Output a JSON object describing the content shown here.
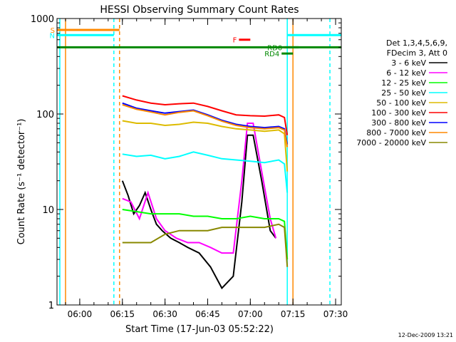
{
  "chart_data": {
    "type": "line",
    "title": "HESSI Observing Summary Count Rates",
    "xlabel": "Start Time (17-Jun-03 05:52:22)",
    "ylabel": "Count Rate (s⁻¹ detector⁻¹)",
    "xscale": "time",
    "yscale": "log",
    "xlim": [
      "05:52",
      "07:32"
    ],
    "ylim": [
      1,
      1000
    ],
    "x_ticks": [
      "06:00",
      "06:15",
      "06:30",
      "06:45",
      "07:00",
      "07:15",
      "07:30"
    ],
    "y_ticks": [
      "1",
      "10",
      "100",
      "1000"
    ],
    "grid": false,
    "legend_position": "right",
    "legend_header": [
      "Det 1,3,4,5,6,9,",
      "FDecim 3, Att 0"
    ],
    "footer": "12-Dec-2009 13:21",
    "series": [
      {
        "name": "3 - 6 keV",
        "color": "#000000",
        "x": [
          "06:15",
          "06:17",
          "06:19",
          "06:21",
          "06:23",
          "06:25",
          "06:27",
          "06:29",
          "06:32",
          "06:35",
          "06:38",
          "06:42",
          "06:46",
          "06:50",
          "06:54",
          "06:57",
          "06:59",
          "07:01",
          "07:04",
          "07:07",
          "07:09"
        ],
        "values": [
          20,
          14,
          9,
          11,
          15,
          10,
          7,
          6,
          5,
          4.5,
          4,
          3.5,
          2.5,
          1.5,
          2,
          12,
          60,
          60,
          20,
          6,
          5
        ]
      },
      {
        "name": "6 - 12 keV",
        "color": "#ff00ff",
        "x": [
          "06:15",
          "06:18",
          "06:21",
          "06:24",
          "06:27",
          "06:30",
          "06:34",
          "06:38",
          "06:42",
          "06:46",
          "06:50",
          "06:54",
          "06:57",
          "06:59",
          "07:01",
          "07:04",
          "07:07",
          "07:09"
        ],
        "values": [
          13,
          12,
          8,
          15,
          8,
          6,
          5,
          4.5,
          4.5,
          4,
          3.5,
          3.5,
          20,
          80,
          80,
          25,
          8,
          5
        ]
      },
      {
        "name": "12 - 25 keV",
        "color": "#00ff00",
        "x": [
          "06:15",
          "06:20",
          "06:25",
          "06:30",
          "06:35",
          "06:40",
          "06:45",
          "06:50",
          "06:55",
          "07:00",
          "07:05",
          "07:10",
          "07:12",
          "07:13"
        ],
        "values": [
          10,
          9.5,
          9,
          9,
          9,
          8.5,
          8.5,
          8,
          8,
          8.5,
          8,
          8,
          7.5,
          3
        ]
      },
      {
        "name": "25 - 50 keV",
        "color": "#00ffff",
        "x": [
          "06:15",
          "06:20",
          "06:25",
          "06:30",
          "06:35",
          "06:40",
          "06:45",
          "06:50",
          "06:55",
          "07:00",
          "07:05",
          "07:10",
          "07:12",
          "07:13"
        ],
        "values": [
          38,
          36,
          37,
          34,
          36,
          40,
          37,
          34,
          33,
          32,
          31,
          33,
          30,
          15
        ]
      },
      {
        "name": "50 - 100 keV",
        "color": "#ddbb00",
        "x": [
          "06:15",
          "06:20",
          "06:25",
          "06:30",
          "06:35",
          "06:40",
          "06:45",
          "06:50",
          "06:55",
          "07:00",
          "07:05",
          "07:10",
          "07:12",
          "07:13"
        ],
        "values": [
          85,
          80,
          80,
          76,
          78,
          82,
          80,
          74,
          70,
          68,
          66,
          68,
          62,
          25
        ]
      },
      {
        "name": "100 - 300 keV",
        "color": "#ff0000",
        "x": [
          "06:15",
          "06:20",
          "06:25",
          "06:30",
          "06:35",
          "06:40",
          "06:45",
          "06:50",
          "06:55",
          "07:00",
          "07:05",
          "07:10",
          "07:12",
          "07:13"
        ],
        "values": [
          155,
          140,
          130,
          125,
          128,
          130,
          120,
          108,
          98,
          96,
          95,
          98,
          92,
          60
        ]
      },
      {
        "name": "300 - 800 keV",
        "color": "#0000ff",
        "x": [
          "06:15",
          "06:20",
          "06:25",
          "06:30",
          "06:35",
          "06:40",
          "06:45",
          "06:50",
          "06:55",
          "07:00",
          "07:05",
          "07:10",
          "07:12",
          "07:13"
        ],
        "values": [
          130,
          115,
          108,
          102,
          106,
          110,
          98,
          86,
          78,
          74,
          72,
          74,
          70,
          48
        ]
      },
      {
        "name": "800 - 7000 keV",
        "color": "#ff8800",
        "x": [
          "06:15",
          "06:20",
          "06:25",
          "06:30",
          "06:35",
          "06:40",
          "06:45",
          "06:50",
          "06:55",
          "07:00",
          "07:05",
          "07:10",
          "07:12",
          "07:13"
        ],
        "values": [
          125,
          112,
          105,
          98,
          104,
          108,
          96,
          84,
          76,
          72,
          70,
          72,
          68,
          45
        ]
      },
      {
        "name": "7000 - 20000 keV",
        "color": "#888800",
        "x": [
          "06:15",
          "06:20",
          "06:25",
          "06:30",
          "06:35",
          "06:40",
          "06:45",
          "06:50",
          "06:55",
          "07:00",
          "07:05",
          "07:10",
          "07:12",
          "07:13"
        ],
        "values": [
          4.5,
          4.5,
          4.5,
          5.5,
          6,
          6,
          6,
          6.5,
          6.5,
          6.5,
          6.5,
          7,
          6.5,
          2.5
        ]
      }
    ],
    "flag_bars": [
      {
        "name": "S",
        "color": "#ff8800",
        "start": "05:52",
        "end": "06:14",
        "level": 760
      },
      {
        "name": "N",
        "color": "#00ffff",
        "start": "05:52",
        "end": "06:12",
        "level": 670
      },
      {
        "name": "",
        "color": "#00ffff",
        "start": "07:13",
        "end": "07:32",
        "level": 670
      },
      {
        "name": "",
        "color": "#008800",
        "start": "05:52",
        "end": "07:32",
        "level": 500
      },
      {
        "name": "F",
        "color": "#ff0000",
        "start": "06:56",
        "end": "07:00",
        "level": 600
      },
      {
        "name": "RD0",
        "color": "#008800",
        "start": "07:12",
        "end": "07:17",
        "level": 500
      },
      {
        "name": "RD4",
        "color": "#008800",
        "start": "07:11",
        "end": "07:15",
        "level": 430
      }
    ],
    "vertical_lines": [
      {
        "time": "05:53",
        "color": "#00ffff",
        "style": "solid"
      },
      {
        "time": "05:55",
        "color": "#ff8800",
        "style": "solid"
      },
      {
        "time": "06:12",
        "color": "#00ffff",
        "style": "dashed"
      },
      {
        "time": "06:14",
        "color": "#ff8800",
        "style": "dashed"
      },
      {
        "time": "07:13",
        "color": "#00ffff",
        "style": "solid"
      },
      {
        "time": "07:15",
        "color": "#ff8800",
        "style": "solid"
      },
      {
        "time": "07:28",
        "color": "#00ffff",
        "style": "dashed"
      }
    ]
  }
}
